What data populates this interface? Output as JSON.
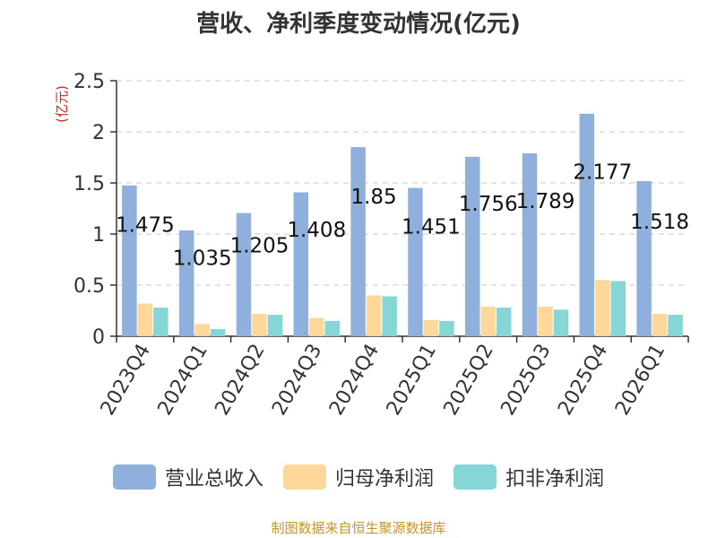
{
  "title": "营收、净利季度变动情况(亿元)",
  "source": "制图数据来自恒生聚源数据库",
  "chart_data": {
    "type": "bar",
    "ylabel": "(亿元)",
    "ylim": [
      0,
      2.5
    ],
    "yticks": [
      0,
      0.5,
      1,
      1.5,
      2,
      2.5
    ],
    "grid": true,
    "legend_position": "bottom",
    "categories": [
      "2023Q4",
      "2024Q1",
      "2024Q2",
      "2024Q3",
      "2024Q4",
      "2025Q1",
      "2025Q2",
      "2025Q3",
      "2025Q4",
      "2026Q1"
    ],
    "series": [
      {
        "name": "营业总收入",
        "color": "#8fb0dc",
        "values": [
          1.475,
          1.035,
          1.205,
          1.408,
          1.85,
          1.451,
          1.756,
          1.789,
          2.177,
          1.518
        ],
        "labels": [
          "1.475",
          "1.035",
          "1.205",
          "1.408",
          "1.85",
          "1.451",
          "1.756",
          "1.789",
          "2.177",
          "1.518"
        ]
      },
      {
        "name": "归母净利润",
        "color": "#fdd89a",
        "values": [
          0.32,
          0.12,
          0.22,
          0.18,
          0.4,
          0.16,
          0.29,
          0.29,
          0.55,
          0.22
        ]
      },
      {
        "name": "扣非净利润",
        "color": "#87d6d6",
        "values": [
          0.28,
          0.07,
          0.21,
          0.15,
          0.39,
          0.15,
          0.28,
          0.26,
          0.54,
          0.21
        ]
      }
    ]
  }
}
